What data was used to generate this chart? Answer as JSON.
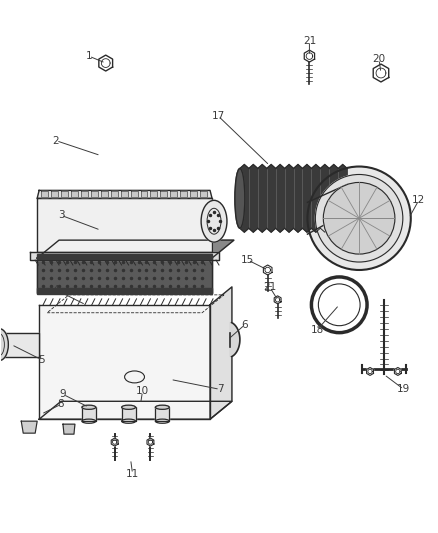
{
  "background_color": "#ffffff",
  "line_color": "#2a2a2a",
  "fig_width": 4.38,
  "fig_height": 5.33,
  "dpi": 100,
  "label_fontsize": 7.5,
  "label_color": "#3a3a3a"
}
